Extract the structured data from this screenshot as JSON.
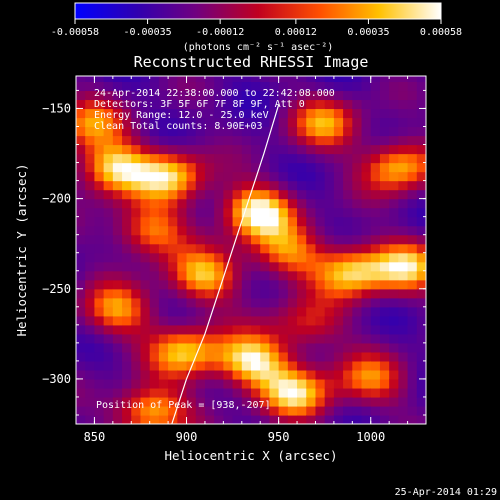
{
  "chart_data": {
    "type": "heatmap",
    "title": "Reconstructed RHESSI Image",
    "xlabel": "Heliocentric X (arcsec)",
    "ylabel": "Heliocentric Y (arcsec)",
    "xlim": [
      840,
      1030
    ],
    "ylim": [
      -325,
      -132
    ],
    "x_ticks": [
      "850",
      "900",
      "950",
      "1000"
    ],
    "x_tick_values": [
      850,
      900,
      950,
      1000
    ],
    "y_ticks": [
      "-150",
      "-200",
      "-250",
      "-300"
    ],
    "y_tick_values": [
      -150,
      -200,
      -250,
      -300
    ],
    "colorbar": {
      "ticks": [
        "-0.00058",
        "-0.00035",
        "-0.00012",
        "0.00012",
        "0.00035",
        "0.00058"
      ],
      "tick_values": [
        -0.00058,
        -0.00035,
        -0.00012,
        0.00012,
        0.00035,
        0.00058
      ],
      "range": [
        -0.00058,
        0.00058
      ],
      "unit_label": "(photons cm⁻² s⁻¹ asec⁻²)",
      "colors": [
        "#0000ff",
        "#4000a0",
        "#800080",
        "#d00000",
        "#ff6000",
        "#ffd000",
        "#ffffff"
      ]
    },
    "annotations": [
      "24-Apr-2014 22:38:00.000 to 22:42:08.000",
      "Detectors: 3F 5F 6F 7F 8F 9F, Att 0",
      "Energy Range: 12.0 - 25.0 keV",
      "Clean    Total counts: 8.90E+03"
    ],
    "peak_label": "Position of Peak = [938,-207]",
    "peak_position": [
      938,
      -207
    ],
    "limb_curve": [
      [
        892,
        -325
      ],
      [
        900,
        -300
      ],
      [
        910,
        -275
      ],
      [
        918,
        -250
      ],
      [
        926,
        -225
      ],
      [
        934,
        -200
      ],
      [
        942,
        -175
      ],
      [
        950,
        -148
      ]
    ],
    "sources": [
      {
        "x": 938,
        "y": -207,
        "value": 0.00058
      },
      {
        "x": 860,
        "y": -183,
        "value": 0.0005
      },
      {
        "x": 892,
        "y": -187,
        "value": 0.00042
      },
      {
        "x": 880,
        "y": -218,
        "value": 0.00035
      },
      {
        "x": 910,
        "y": -243,
        "value": 0.00038
      },
      {
        "x": 862,
        "y": -262,
        "value": 0.00032
      },
      {
        "x": 990,
        "y": -240,
        "value": 0.00045
      },
      {
        "x": 1020,
        "y": -238,
        "value": 0.00038
      },
      {
        "x": 1015,
        "y": -182,
        "value": 0.00042
      },
      {
        "x": 975,
        "y": -158,
        "value": 0.0003
      },
      {
        "x": 955,
        "y": -230,
        "value": 0.00028
      },
      {
        "x": 960,
        "y": -308,
        "value": 0.00042
      },
      {
        "x": 935,
        "y": -290,
        "value": 0.00052
      },
      {
        "x": 900,
        "y": -285,
        "value": 0.0004
      },
      {
        "x": 880,
        "y": -318,
        "value": 0.00045
      },
      {
        "x": 847,
        "y": -158,
        "value": 0.00026
      },
      {
        "x": 1000,
        "y": -300,
        "value": 0.00025
      },
      {
        "x": 965,
        "y": -270,
        "value": 0.00018
      }
    ]
  },
  "footer": {
    "timestamp": "25-Apr-2014 01:29"
  }
}
